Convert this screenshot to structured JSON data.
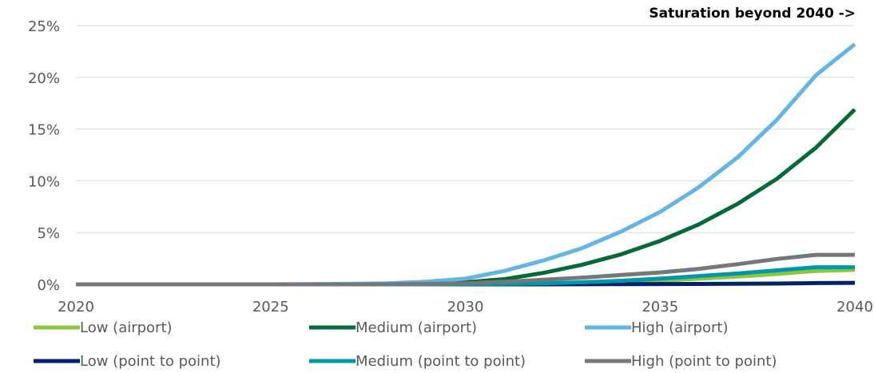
{
  "chart_data": {
    "type": "line",
    "annotation": "Saturation beyond 2040 ->",
    "x": [
      2020,
      2021,
      2022,
      2023,
      2024,
      2025,
      2026,
      2027,
      2028,
      2029,
      2030,
      2031,
      2032,
      2033,
      2034,
      2035,
      2036,
      2037,
      2038,
      2039,
      2040
    ],
    "x_ticks": [
      "2020",
      "2025",
      "2030",
      "2035",
      "2040"
    ],
    "y_ticks": [
      "0%",
      "5%",
      "10%",
      "15%",
      "20%",
      "25%"
    ],
    "ylim": [
      0,
      25
    ],
    "grid": true,
    "legend_position": "bottom",
    "series": [
      {
        "name": "Low (airport)",
        "color": "#8dc63f",
        "values": [
          0,
          0,
          0,
          0,
          0,
          0,
          0,
          0,
          0,
          0,
          0.02,
          0.05,
          0.08,
          0.15,
          0.25,
          0.35,
          0.55,
          0.75,
          1.0,
          1.3,
          1.4
        ]
      },
      {
        "name": "Medium (airport)",
        "color": "#046a38",
        "values": [
          0,
          0,
          0,
          0,
          0,
          0,
          0,
          0,
          0.02,
          0.08,
          0.2,
          0.5,
          1.1,
          1.9,
          2.9,
          4.2,
          5.8,
          7.8,
          10.2,
          13.2,
          16.9
        ]
      },
      {
        "name": "High (airport)",
        "color": "#62b5e5",
        "values": [
          0,
          0,
          0,
          0,
          0,
          0,
          0.02,
          0.05,
          0.1,
          0.25,
          0.55,
          1.3,
          2.3,
          3.5,
          5.1,
          7.0,
          9.4,
          12.3,
          15.9,
          20.2,
          23.2
        ]
      },
      {
        "name": "Low (point to point)",
        "color": "#012169",
        "values": [
          0,
          0,
          0,
          0,
          0,
          0,
          0,
          0,
          0,
          0,
          0,
          0,
          0,
          0.01,
          0.02,
          0.03,
          0.04,
          0.06,
          0.08,
          0.12,
          0.15
        ]
      },
      {
        "name": "Medium (point to point)",
        "color": "#0097a9",
        "values": [
          0,
          0,
          0,
          0,
          0,
          0,
          0,
          0,
          0,
          0,
          0.02,
          0.05,
          0.1,
          0.2,
          0.35,
          0.55,
          0.8,
          1.05,
          1.35,
          1.65,
          1.65
        ]
      },
      {
        "name": "High (point to point)",
        "color": "#75787b",
        "values": [
          0,
          0,
          0,
          0,
          0,
          0,
          0,
          0,
          0.02,
          0.05,
          0.1,
          0.25,
          0.45,
          0.65,
          0.9,
          1.15,
          1.5,
          1.95,
          2.45,
          2.85,
          2.85
        ]
      }
    ]
  }
}
